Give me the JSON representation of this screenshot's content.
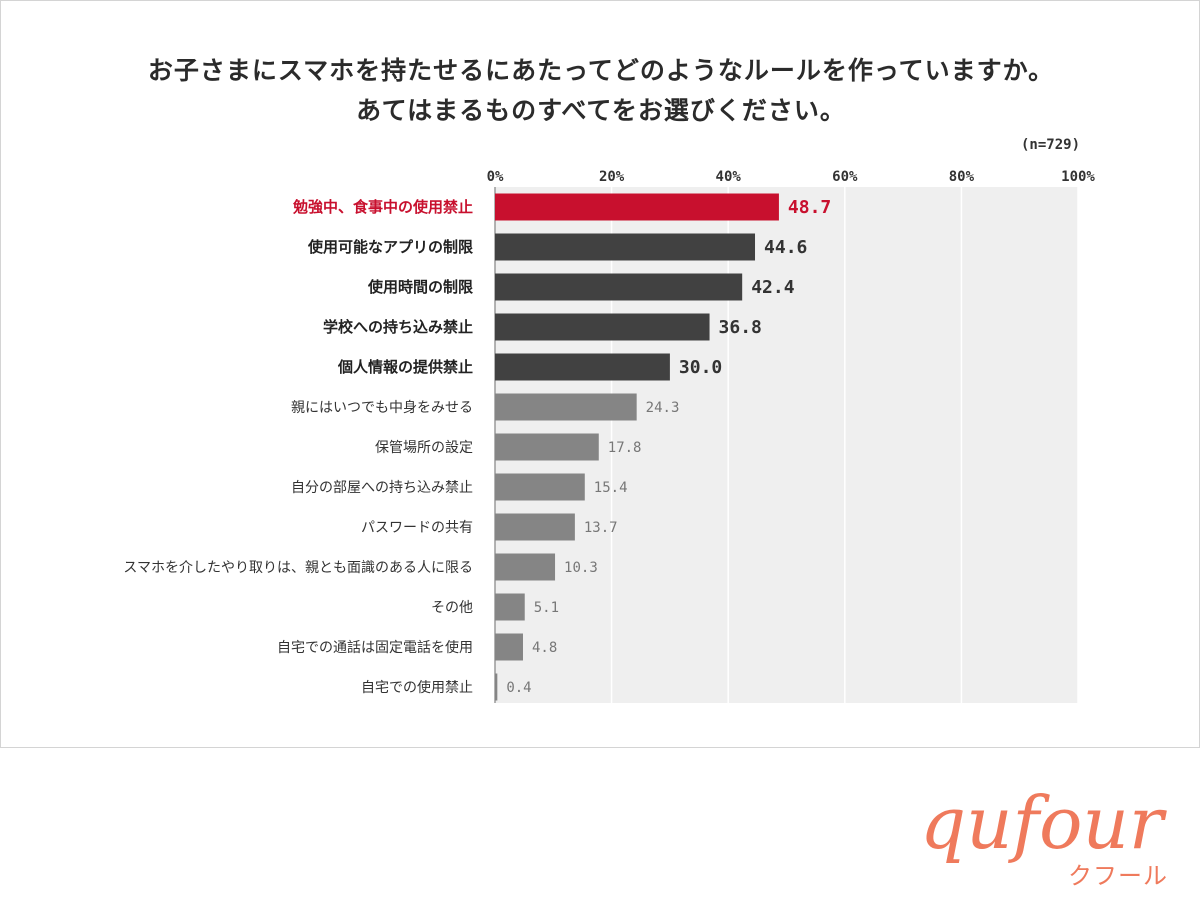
{
  "title": {
    "line1": "お子さまにスマホを持たせるにあたってどのようなルールを作っていますか。",
    "line2": "あてはまるものすべてをお選びください。"
  },
  "sample_size": "(n=729)",
  "colors": {
    "highlight": "#c8102e",
    "top_group": "#414141",
    "rest_group": "#858585",
    "plot_background": "#efefef",
    "gridline": "#ffffff",
    "brand": "#ef7a5c"
  },
  "brand": {
    "logo_text": "qufour",
    "sub_text": "クフール"
  },
  "chart_data": {
    "type": "bar",
    "orientation": "horizontal",
    "xlim": [
      0,
      100
    ],
    "ticks": [
      "0%",
      "20%",
      "40%",
      "60%",
      "80%",
      "100%"
    ],
    "tick_values": [
      0,
      20,
      40,
      60,
      80,
      100
    ],
    "grid": true,
    "categories": [
      "勉強中、食事中の使用禁止",
      "使用可能なアプリの制限",
      "使用時間の制限",
      "学校への持ち込み禁止",
      "個人情報の提供禁止",
      "親にはいつでも中身をみせる",
      "保管場所の設定",
      "自分の部屋への持ち込み禁止",
      "パスワードの共有",
      "スマホを介したやり取りは、親とも面識のある人に限る",
      "その他",
      "自宅での通話は固定電話を使用",
      "自宅での使用禁止"
    ],
    "values": [
      48.7,
      44.6,
      42.4,
      36.8,
      30.0,
      24.3,
      17.8,
      15.4,
      13.7,
      10.3,
      5.1,
      4.8,
      0.4
    ],
    "value_labels": [
      "48.7",
      "44.6",
      "42.4",
      "36.8",
      "30.0",
      "24.3",
      "17.8",
      "15.4",
      "13.7",
      "10.3",
      "5.1",
      "4.8",
      "0.4"
    ]
  }
}
